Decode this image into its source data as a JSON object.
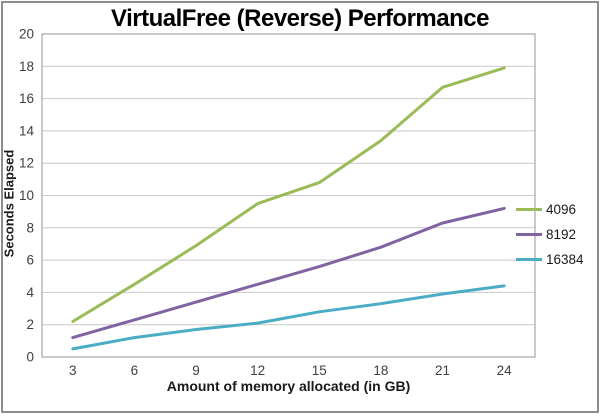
{
  "chart_data": {
    "type": "line",
    "title": "VirtualFree (Reverse) Performance",
    "xlabel": "Amount of memory allocated (in GB)",
    "ylabel": "Seconds Elapsed",
    "x": [
      3,
      6,
      9,
      12,
      15,
      18,
      21,
      24
    ],
    "ylim": [
      0,
      20
    ],
    "ytick_step": 2,
    "grid": "horizontal gridlines on, plot area framed",
    "legend_position": "right, outside plot",
    "series": [
      {
        "name": "4096",
        "color": "#9BBB59",
        "values": [
          2.2,
          4.5,
          6.9,
          9.5,
          10.8,
          13.4,
          16.7,
          17.9
        ]
      },
      {
        "name": "8192",
        "color": "#8064A2",
        "values": [
          1.2,
          2.3,
          3.4,
          4.5,
          5.6,
          6.8,
          8.3,
          9.2
        ]
      },
      {
        "name": "16384",
        "color": "#4BACC6",
        "values": [
          0.5,
          1.2,
          1.7,
          2.1,
          2.8,
          3.3,
          3.9,
          4.4
        ]
      }
    ],
    "colors": {
      "gridline": "#C9C9C9",
      "plot_border": "#A6A6A6",
      "axis_text": "#404040",
      "title_text": "#000000",
      "frame_border": "#8C8C8C",
      "background": "#FFFFFF"
    }
  }
}
